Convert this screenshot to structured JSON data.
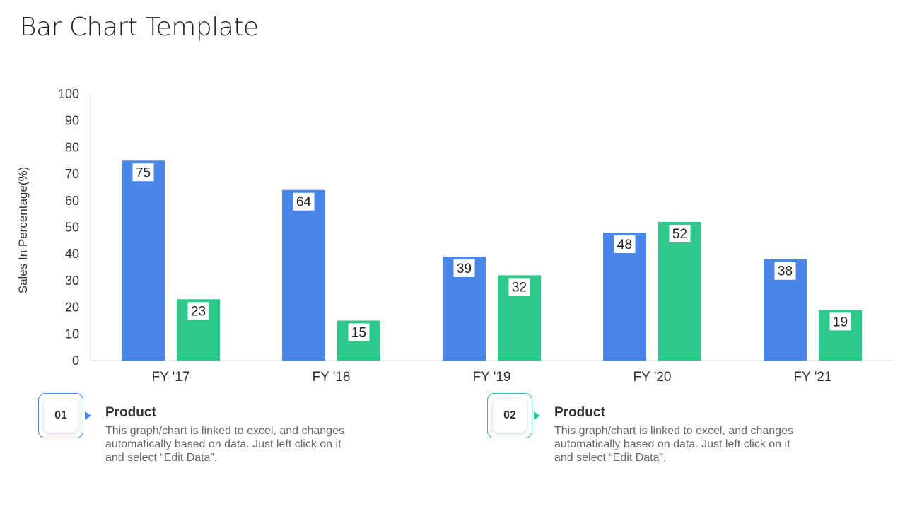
{
  "page": {
    "title": "Bar Chart Template"
  },
  "chart_data": {
    "type": "bar",
    "categories": [
      "FY '17",
      "FY '18",
      "FY '19",
      "FY '20",
      "FY '21"
    ],
    "series": [
      {
        "values": [
          75,
          64,
          39,
          48,
          38
        ],
        "color": "#4a86e8"
      },
      {
        "values": [
          23,
          15,
          32,
          52,
          19
        ],
        "color": "#2cc98a"
      }
    ],
    "ylabel": "Sales In Percentage(%)",
    "ylim": [
      0,
      100
    ],
    "yticks": [
      0,
      10,
      20,
      30,
      40,
      50,
      60,
      70,
      80,
      90,
      100
    ],
    "grid": false,
    "data_labels": true
  },
  "info": [
    {
      "number": "01",
      "title": "Product",
      "text": "This graph/chart is linked to excel, and changes automatically based on data. Just left click on it and select “Edit Data”.",
      "accent": "#4a86e8"
    },
    {
      "number": "02",
      "title": "Product",
      "text": "This graph/chart is linked to excel, and changes automatically based on data. Just left click on it and select “Edit Data”.",
      "accent": "#2cc98a"
    }
  ]
}
